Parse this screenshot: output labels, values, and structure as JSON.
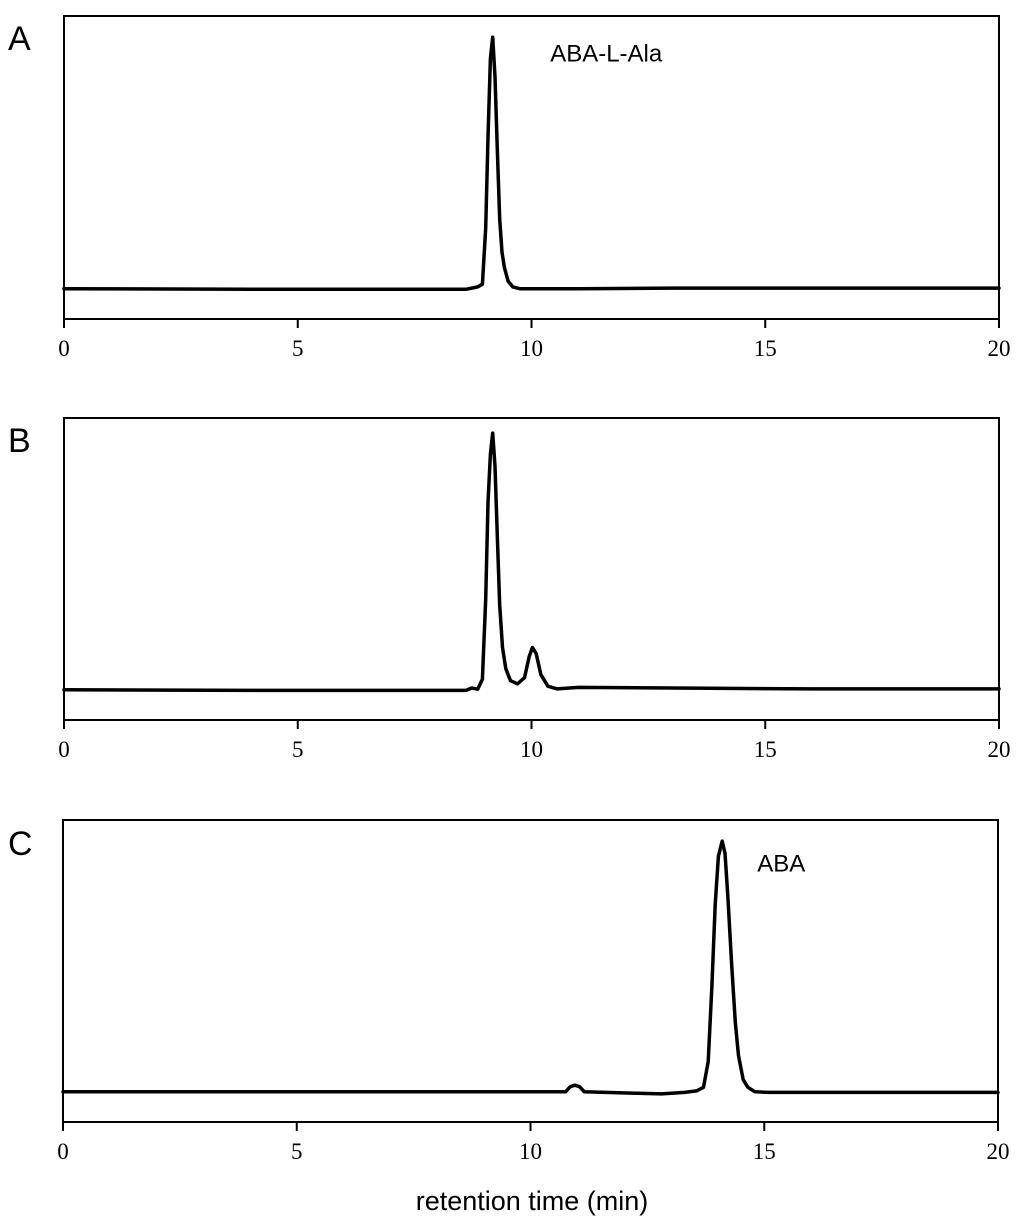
{
  "xlabel": "retention time (min)",
  "chart_data": [
    {
      "type": "line",
      "panel": "A",
      "xlim": [
        0,
        20
      ],
      "ylim": [
        0,
        100
      ],
      "xticks": [
        "0",
        "5",
        "10",
        "15",
        "20"
      ],
      "annotations": [
        {
          "text": "ABA-L-Ala",
          "x": 10.4,
          "y": 85
        }
      ],
      "series": [
        {
          "x": [
            0,
            4,
            8.6,
            8.85,
            8.95,
            9.02,
            9.07,
            9.12,
            9.17,
            9.22,
            9.27,
            9.32,
            9.37,
            9.42,
            9.5,
            9.6,
            9.75,
            10,
            11,
            13,
            16,
            20
          ],
          "y": [
            10,
            9.8,
            9.8,
            10.6,
            11.5,
            30,
            60,
            86,
            93,
            80,
            55,
            33,
            22,
            17,
            12.5,
            10.6,
            10,
            10,
            10,
            10.2,
            10.2,
            10.2
          ]
        }
      ]
    },
    {
      "type": "line",
      "panel": "B",
      "xlim": [
        0,
        20
      ],
      "ylim": [
        0,
        100
      ],
      "xticks": [
        "0",
        "5",
        "10",
        "15",
        "20"
      ],
      "annotations": [],
      "series": [
        {
          "x": [
            0,
            4,
            8.6,
            8.72,
            8.85,
            8.95,
            9.02,
            9.07,
            9.12,
            9.17,
            9.22,
            9.27,
            9.32,
            9.38,
            9.45,
            9.55,
            9.7,
            9.85,
            9.95,
            10.02,
            10.1,
            10.2,
            10.35,
            10.55,
            11,
            13,
            16,
            20
          ],
          "y": [
            10,
            9.8,
            9.8,
            10.6,
            10.2,
            13.5,
            40,
            72,
            88,
            95,
            84,
            60,
            38,
            24,
            17,
            13,
            12,
            14,
            21,
            24,
            22,
            15,
            11.2,
            10.3,
            10.8,
            10.6,
            10.3,
            10.3
          ]
        }
      ]
    },
    {
      "type": "line",
      "panel": "C",
      "xlim": [
        0,
        20
      ],
      "ylim": [
        0,
        100
      ],
      "xticks": [
        "0",
        "5",
        "10",
        "15",
        "20"
      ],
      "annotations": [
        {
          "text": "ABA",
          "x": 14.85,
          "y": 83
        }
      ],
      "series": [
        {
          "x": [
            0,
            5,
            10,
            10.75,
            10.85,
            10.95,
            11.05,
            11.15,
            11.6,
            12.3,
            12.8,
            13.3,
            13.55,
            13.7,
            13.8,
            13.88,
            13.95,
            14.02,
            14.1,
            14.16,
            14.22,
            14.3,
            14.38,
            14.45,
            14.55,
            14.65,
            14.8,
            15.1,
            16,
            20
          ],
          "y": [
            10,
            10,
            10,
            10,
            11.7,
            12.2,
            11.7,
            10,
            9.8,
            9.5,
            9.3,
            9.8,
            10.3,
            11.5,
            20,
            45,
            72,
            88,
            93,
            89,
            75,
            53,
            33,
            22,
            14,
            11.5,
            10,
            9.8,
            9.8,
            9.8
          ]
        }
      ]
    }
  ]
}
